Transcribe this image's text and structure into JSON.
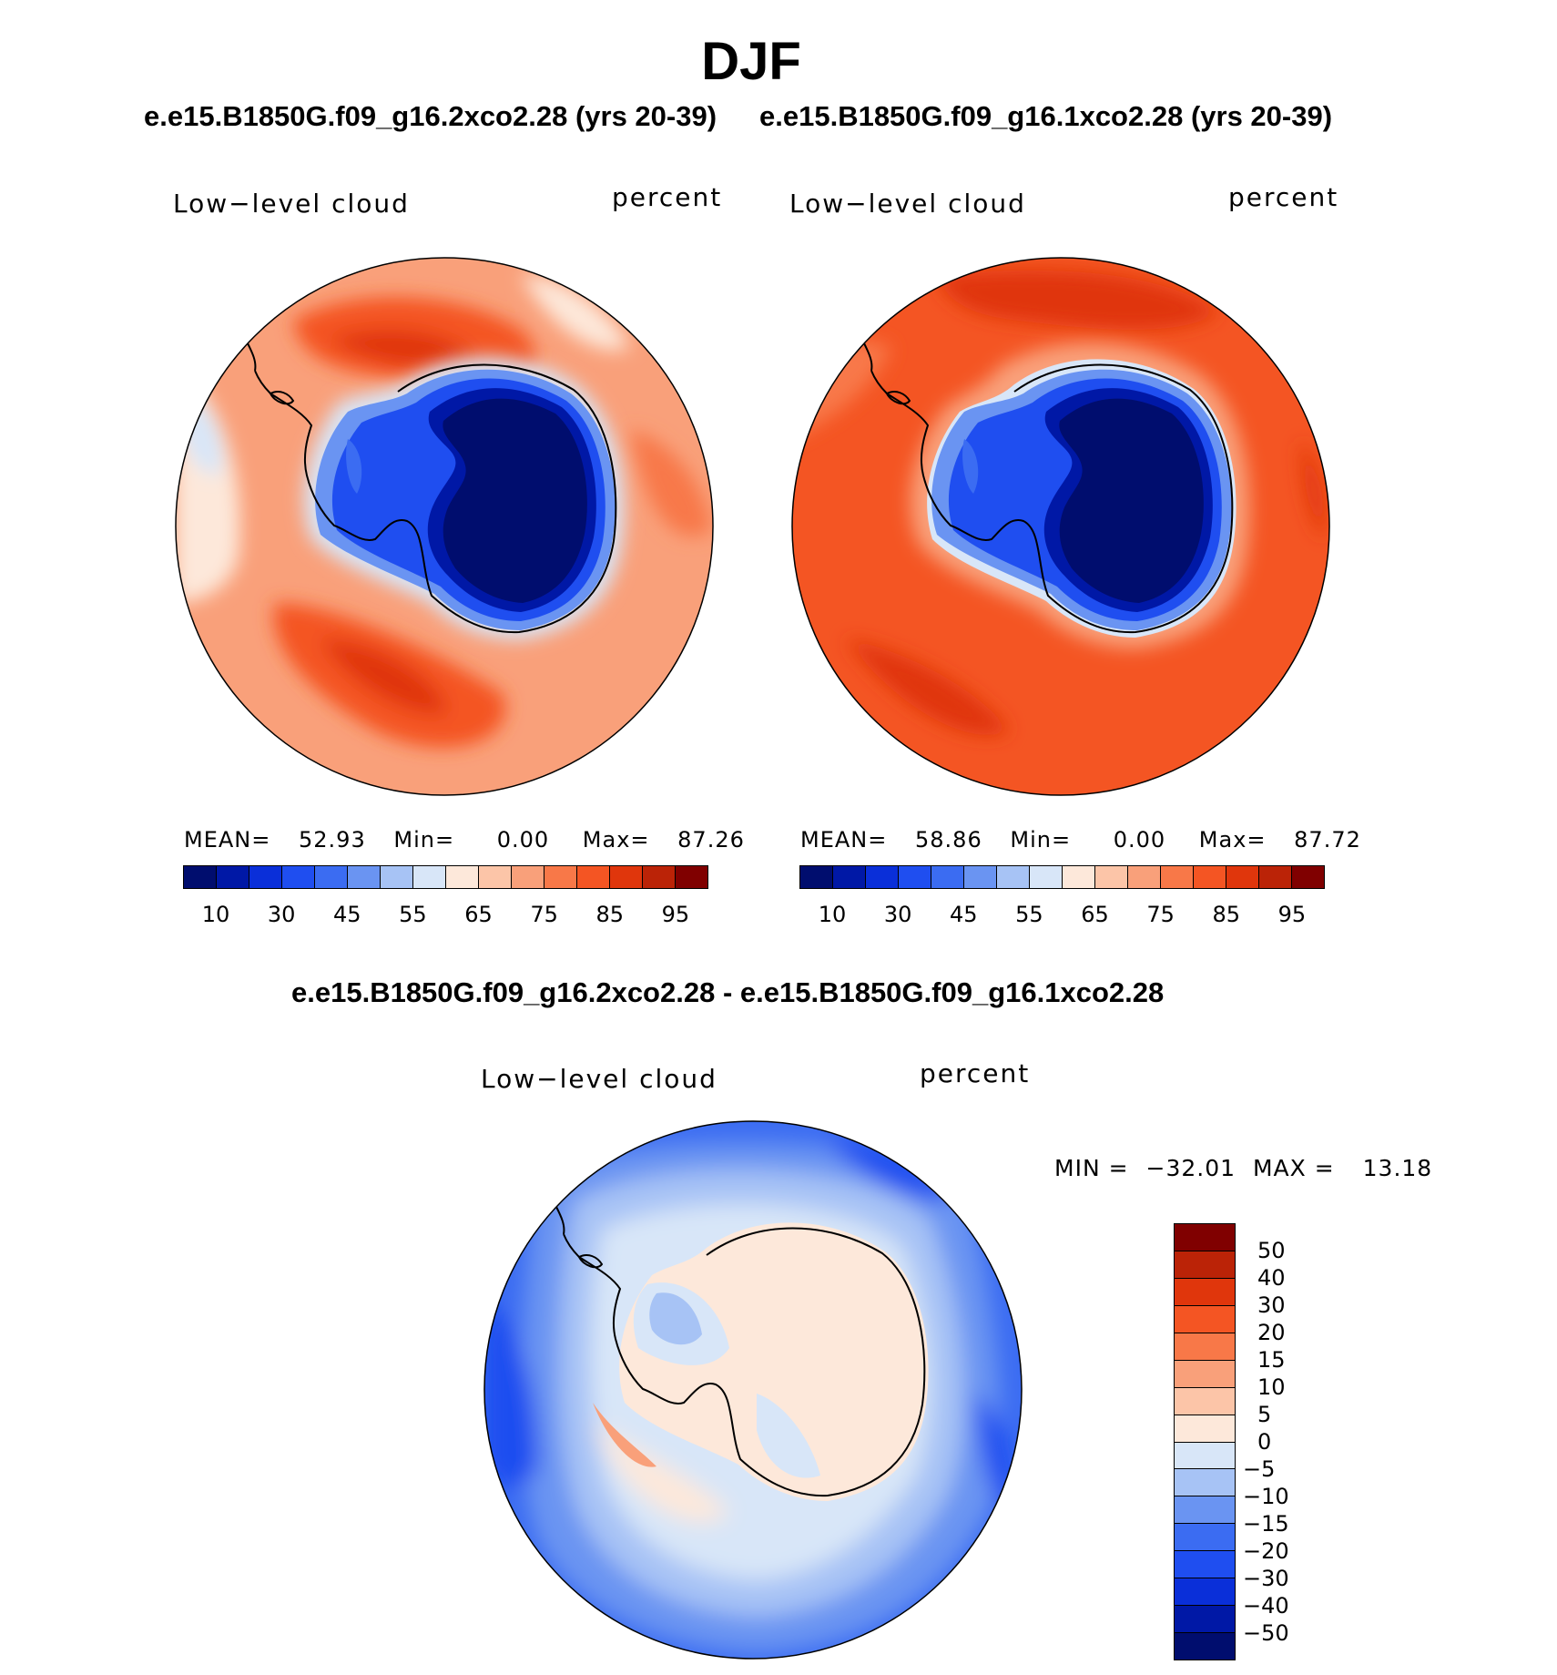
{
  "title": "DJF",
  "subtitle_left": "e.e15.B1850G.f09_g16.2xco2.28 (yrs 20-39)",
  "subtitle_right": "e.e15.B1850G.f09_g16.1xco2.28 (yrs 20-39)",
  "diff_title": "e.e15.B1850G.f09_g16.2xco2.28 - e.e15.B1850G.f09_g16.1xco2.28",
  "panels": [
    {
      "variable": "Low−level cloud",
      "units": "percent",
      "mean_label": "MEAN=",
      "mean_value": "52.93",
      "min_label": "Min=",
      "min_value": "0.00",
      "max_label": "Max=",
      "max_value": "87.26"
    },
    {
      "variable": "Low−level cloud",
      "units": "percent",
      "mean_label": "MEAN=",
      "mean_value": "58.86",
      "min_label": "Min=",
      "min_value": "0.00",
      "max_label": "Max=",
      "max_value": "87.72"
    }
  ],
  "diff_panel": {
    "variable": "Low−level cloud",
    "units": "percent",
    "min_label": "MIN =",
    "min_value": "−32.01",
    "max_label": "MAX =",
    "max_value": "13.18"
  },
  "colorbar_horizontal": {
    "colors": [
      "#000d6e",
      "#0018a6",
      "#0a2fd9",
      "#1f4ef0",
      "#3b6cf2",
      "#6a94f2",
      "#a7c3f5",
      "#d8e6f8",
      "#fde8da",
      "#fcc5a8",
      "#f9a07a",
      "#f87848",
      "#f45523",
      "#e0360c",
      "#bb2307",
      "#800000"
    ],
    "tick_labels": [
      "10",
      "30",
      "45",
      "55",
      "65",
      "75",
      "85",
      "95"
    ]
  },
  "colorbar_vertical": {
    "colors": [
      "#800000",
      "#bb2307",
      "#e0360c",
      "#f45523",
      "#f87848",
      "#f9a07a",
      "#fcc5a8",
      "#fde8da",
      "#d8e6f8",
      "#a7c3f5",
      "#6a94f2",
      "#3b6cf2",
      "#1f4ef0",
      "#0a2fd9",
      "#0018a6",
      "#000d6e"
    ],
    "tick_labels": [
      "50",
      "40",
      "30",
      "20",
      "15",
      "10",
      "5",
      "0",
      "−5",
      "−10",
      "−15",
      "−20",
      "−30",
      "−40",
      "−50"
    ]
  }
}
